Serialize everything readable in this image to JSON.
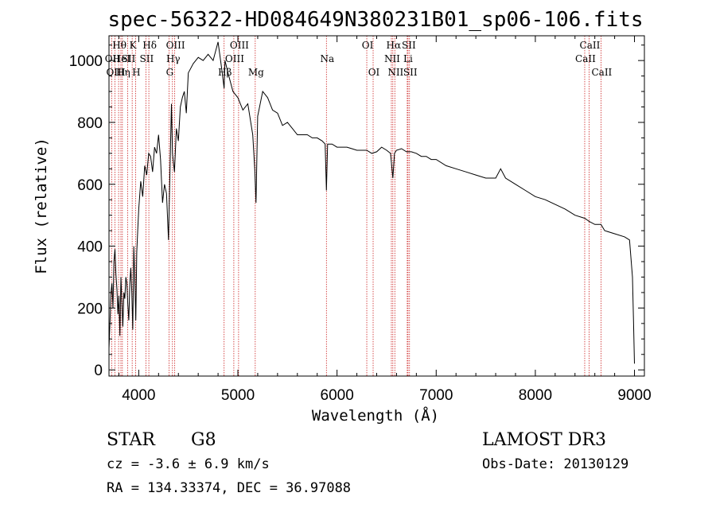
{
  "chart_data": {
    "type": "line",
    "title": "spec-56322-HD084649N380231B01_sp06-106.fits",
    "xlabel": "Wavelength (Å)",
    "ylabel": "Flux (relative)",
    "xlim": [
      3700,
      9100
    ],
    "ylim": [
      -20,
      1080
    ],
    "xticks": [
      4000,
      5000,
      6000,
      7000,
      8000,
      9000
    ],
    "yticks": [
      0,
      200,
      400,
      600,
      800,
      1000
    ],
    "series": [
      {
        "name": "flux",
        "x": [
          3700,
          3710,
          3720,
          3730,
          3740,
          3750,
          3760,
          3770,
          3780,
          3790,
          3800,
          3810,
          3820,
          3830,
          3840,
          3850,
          3860,
          3870,
          3880,
          3890,
          3900,
          3910,
          3920,
          3930,
          3940,
          3950,
          3960,
          3970,
          3980,
          3990,
          4000,
          4020,
          4040,
          4060,
          4080,
          4100,
          4120,
          4140,
          4160,
          4180,
          4200,
          4220,
          4240,
          4260,
          4280,
          4300,
          4320,
          4330,
          4340,
          4360,
          4380,
          4400,
          4420,
          4440,
          4460,
          4480,
          4500,
          4550,
          4600,
          4650,
          4700,
          4750,
          4800,
          4830,
          4850,
          4861,
          4870,
          4900,
          4950,
          5000,
          5050,
          5100,
          5150,
          5170,
          5183,
          5200,
          5250,
          5300,
          5350,
          5400,
          5450,
          5500,
          5550,
          5600,
          5650,
          5700,
          5750,
          5800,
          5850,
          5880,
          5893,
          5905,
          5950,
          6000,
          6050,
          6100,
          6150,
          6200,
          6250,
          6300,
          6350,
          6400,
          6450,
          6500,
          6540,
          6563,
          6580,
          6600,
          6650,
          6700,
          6750,
          6800,
          6850,
          6900,
          6950,
          7000,
          7100,
          7200,
          7300,
          7400,
          7500,
          7600,
          7650,
          7700,
          7750,
          7800,
          7900,
          8000,
          8100,
          8200,
          8300,
          8400,
          8500,
          8542,
          8600,
          8662,
          8700,
          8800,
          8900,
          8950,
          8980,
          8990,
          9000
        ],
        "values": [
          70,
          150,
          250,
          280,
          200,
          350,
          390,
          310,
          260,
          180,
          240,
          110,
          300,
          220,
          140,
          250,
          230,
          300,
          280,
          210,
          160,
          280,
          330,
          250,
          130,
          400,
          300,
          160,
          380,
          450,
          520,
          610,
          560,
          660,
          630,
          700,
          690,
          640,
          720,
          700,
          760,
          680,
          540,
          600,
          570,
          420,
          720,
          860,
          700,
          640,
          780,
          740,
          850,
          880,
          900,
          830,
          960,
          990,
          1010,
          1000,
          1020,
          1000,
          1060,
          990,
          940,
          910,
          1000,
          960,
          900,
          880,
          840,
          860,
          760,
          650,
          540,
          820,
          900,
          880,
          840,
          830,
          790,
          800,
          780,
          760,
          760,
          760,
          750,
          750,
          740,
          730,
          580,
          730,
          730,
          720,
          720,
          720,
          715,
          710,
          710,
          710,
          700,
          705,
          720,
          710,
          700,
          620,
          700,
          710,
          715,
          705,
          705,
          700,
          690,
          690,
          680,
          680,
          660,
          650,
          640,
          630,
          620,
          620,
          650,
          620,
          610,
          600,
          580,
          560,
          550,
          535,
          520,
          500,
          490,
          480,
          470,
          470,
          450,
          440,
          430,
          420,
          300,
          160,
          20
        ]
      }
    ],
    "spectral_lines": [
      {
        "label": "Hθ",
        "x": 3797,
        "row": 0
      },
      {
        "label": "OII",
        "x": 3727,
        "row": 1
      },
      {
        "label": "OIII",
        "x": 3760,
        "row": 2
      },
      {
        "label": "HeI",
        "x": 3820,
        "row": 1
      },
      {
        "label": "Hη",
        "x": 3835,
        "row": 2
      },
      {
        "label": "K",
        "x": 3934,
        "row": 0
      },
      {
        "label": "SII",
        "x": 3889,
        "row": 1
      },
      {
        "label": "H",
        "x": 3968,
        "row": 2
      },
      {
        "label": "Hδ",
        "x": 4102,
        "row": 0
      },
      {
        "label": "SII",
        "x": 4072,
        "row": 1
      },
      {
        "label": "OIII",
        "x": 4363,
        "row": 0
      },
      {
        "label": "Hγ",
        "x": 4340,
        "row": 1
      },
      {
        "label": "G",
        "x": 4305,
        "row": 2
      },
      {
        "label": "OIII",
        "x": 5007,
        "row": 0
      },
      {
        "label": "OIII",
        "x": 4959,
        "row": 1
      },
      {
        "label": "Hβ",
        "x": 4861,
        "row": 2
      },
      {
        "label": "Mg",
        "x": 5175,
        "row": 2
      },
      {
        "label": "Na",
        "x": 5893,
        "row": 1
      },
      {
        "label": "OI",
        "x": 6300,
        "row": 0
      },
      {
        "label": "OI",
        "x": 6364,
        "row": 2
      },
      {
        "label": "Hα",
        "x": 6563,
        "row": 0
      },
      {
        "label": "NII",
        "x": 6548,
        "row": 1
      },
      {
        "label": "NII",
        "x": 6583,
        "row": 2
      },
      {
        "label": "SII",
        "x": 6716,
        "row": 0
      },
      {
        "label": "Li",
        "x": 6708,
        "row": 1
      },
      {
        "label": "SII",
        "x": 6731,
        "row": 2
      },
      {
        "label": "CaII",
        "x": 8542,
        "row": 0
      },
      {
        "label": "CaII",
        "x": 8498,
        "row": 1
      },
      {
        "label": "CaII",
        "x": 8662,
        "row": 2
      }
    ]
  },
  "info": {
    "object_class": "STAR",
    "subclass": "G8",
    "survey": "LAMOST DR3",
    "redshift": "cz = -3.6 ± 6.9 km/s",
    "obs_date": "Obs-Date: 20130129",
    "coords": "RA = 134.33374, DEC =  36.97088"
  },
  "colors": {
    "line_marker": "#cc2222",
    "spectrum": "#000000"
  }
}
